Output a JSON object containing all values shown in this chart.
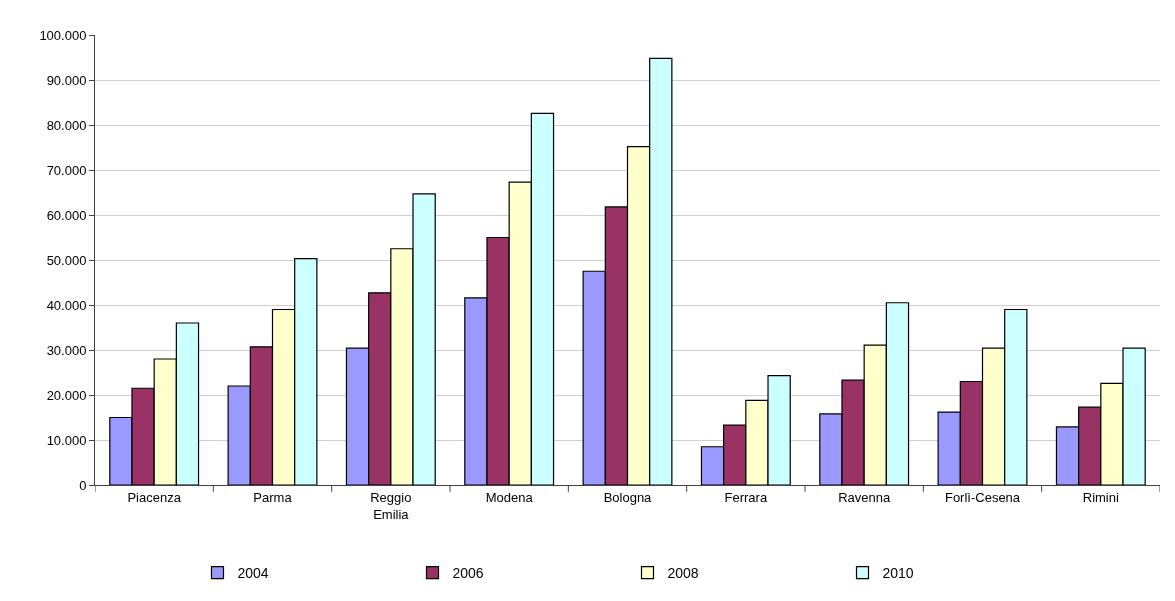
{
  "chart_data": {
    "type": "bar",
    "categories": [
      "Piacenza",
      "Parma",
      "Reggio Emilia",
      "Modena",
      "Bologna",
      "Ferrara",
      "Ravenna",
      "Forlì-Cesena",
      "Rimini"
    ],
    "series": [
      {
        "name": "2004",
        "color": "#9999ff",
        "values": [
          15000,
          22000,
          30400,
          41600,
          47500,
          8500,
          15800,
          16200,
          12900
        ]
      },
      {
        "name": "2006",
        "color": "#993366",
        "values": [
          21500,
          30700,
          42700,
          55000,
          61800,
          13300,
          23300,
          23000,
          17300
        ]
      },
      {
        "name": "2008",
        "color": "#ffffcc",
        "values": [
          28000,
          39000,
          52500,
          67300,
          75200,
          18800,
          31100,
          30400,
          22600
        ]
      },
      {
        "name": "2010",
        "color": "#ccffff",
        "values": [
          36000,
          50300,
          64700,
          82600,
          94800,
          24300,
          40500,
          39000,
          30400
        ]
      }
    ],
    "ylim": [
      0,
      100000
    ],
    "yticks": [
      0,
      {
        "value": 10000,
        "label": "10.000"
      },
      {
        "value": 20000,
        "label": "20.000"
      },
      {
        "value": 30000,
        "label": "30.000"
      },
      {
        "value": 40000,
        "label": "40.000"
      },
      {
        "value": 50000,
        "label": "50.000"
      },
      {
        "value": 60000,
        "label": "60.000"
      },
      {
        "value": 70000,
        "label": "70.000"
      },
      {
        "value": 80000,
        "label": "80.000"
      },
      {
        "value": 90000,
        "label": "90.000"
      },
      {
        "value": 100000,
        "label": "100.000"
      }
    ],
    "grid": "y",
    "legend": "bottom"
  }
}
